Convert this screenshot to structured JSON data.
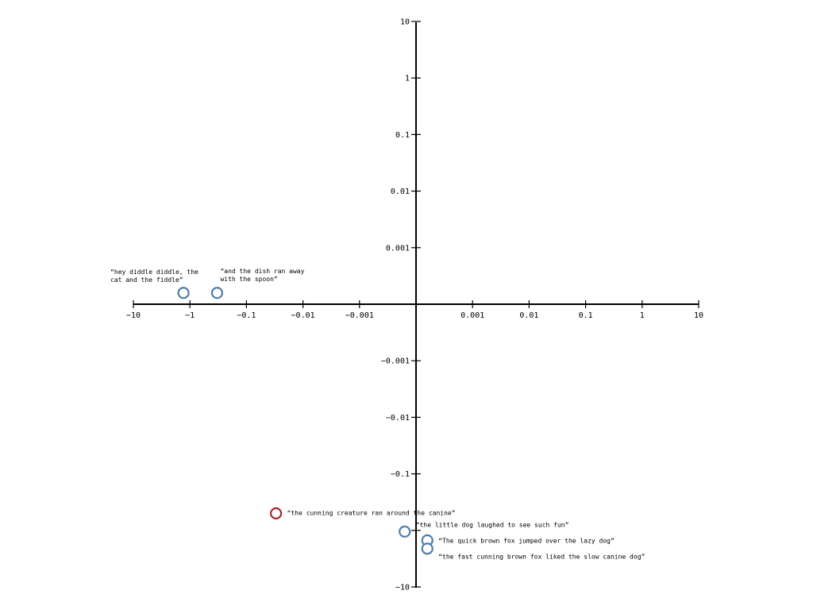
{
  "chart_data": {
    "type": "scatter",
    "title": "",
    "xlabel": "",
    "ylabel": "",
    "scale": "symmetric-log",
    "xlim": [
      -10,
      10
    ],
    "ylim": [
      -10,
      10
    ],
    "grid": false,
    "x_ticks": [
      "-10",
      "-1",
      "-0.1",
      "-0.01",
      "-0.001",
      "0.001",
      "0.01",
      "0.1",
      "1",
      "10"
    ],
    "y_ticks": [
      "10",
      "1",
      "0.1",
      "0.01",
      "0.001",
      "-0.001",
      "-0.01",
      "-0.1",
      "-1",
      "-10"
    ],
    "points": [
      {
        "label": "“hey diddle diddle, the cat and the fiddle”",
        "x": -1.3,
        "y": 0.0001,
        "color": "#4d7fa8"
      },
      {
        "label": "“and the dish ran away with the spoon”",
        "x": -0.33,
        "y": 0.0001,
        "color": "#4d7fa8"
      },
      {
        "label": "“the cunning creature ran around the canine”",
        "x": -0.03,
        "y": -0.5,
        "color": "#a82a2a"
      },
      {
        "label": "“the little dog laughed to see such fun”",
        "x": -0.0001,
        "y": -1.05,
        "color": "#4d7fa8"
      },
      {
        "label": "“The quick brown fox jumped over the lazy dog”",
        "x": 0.0001,
        "y": -1.5,
        "color": "#4d7fa8"
      },
      {
        "label": "“the fast cunning brown fox liked the slow canine dog”",
        "x": 0.0001,
        "y": -2.1,
        "color": "#4d7fa8"
      }
    ]
  }
}
